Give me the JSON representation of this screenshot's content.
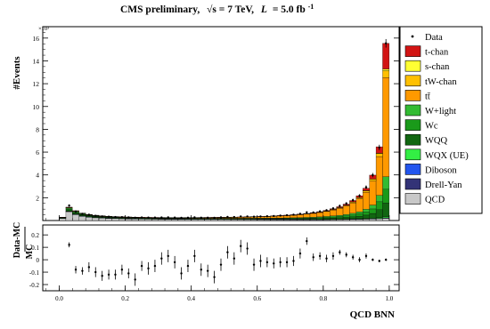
{
  "header": {
    "title_prefix": "CMS preliminary,",
    "sqrt_s": "√s = 7 TeV,",
    "lumi_symbol": "L",
    "lumi_value": "= 5.0 fb",
    "lumi_exponent": "-1"
  },
  "chart_data": [
    {
      "type": "bar",
      "subtype": "stacked-histogram",
      "title": "CMS preliminary, √s = 7 TeV, L = 5.0 fb-1",
      "ylabel": "#Events",
      "y_multiplier_label": "×10³",
      "xlim": [
        -0.05,
        1.03
      ],
      "ylim": [
        0,
        17000
      ],
      "y_ticks": [
        2000,
        4000,
        6000,
        8000,
        10000,
        12000,
        14000,
        16000
      ],
      "y_tick_labels": [
        "2",
        "4",
        "6",
        "8",
        "10",
        "12",
        "14",
        "16"
      ],
      "legend_position": "right, outside",
      "bin_width": 0.02,
      "bin_centers": [
        0.01,
        0.03,
        0.05,
        0.07,
        0.09,
        0.11,
        0.13,
        0.15,
        0.17,
        0.19,
        0.21,
        0.23,
        0.25,
        0.27,
        0.29,
        0.31,
        0.33,
        0.35,
        0.37,
        0.39,
        0.41,
        0.43,
        0.45,
        0.47,
        0.49,
        0.51,
        0.53,
        0.55,
        0.57,
        0.59,
        0.61,
        0.63,
        0.65,
        0.67,
        0.69,
        0.71,
        0.73,
        0.75,
        0.77,
        0.79,
        0.81,
        0.83,
        0.85,
        0.87,
        0.89,
        0.91,
        0.93,
        0.95,
        0.97,
        0.99
      ],
      "legend": [
        {
          "name": "Data",
          "color": "#000000",
          "marker": "point"
        },
        {
          "name": "t-chan",
          "color": "#d21414"
        },
        {
          "name": "s-chan",
          "color": "#ffff33"
        },
        {
          "name": "tW-chan",
          "color": "#ffc000"
        },
        {
          "name": "tt̄",
          "color": "#ff9900"
        },
        {
          "name": "W+light",
          "color": "#33bb33"
        },
        {
          "name": "Wc",
          "color": "#1a9a1a"
        },
        {
          "name": "WQQ",
          "color": "#116611"
        },
        {
          "name": "WQX (UE)",
          "color": "#33ee44"
        },
        {
          "name": "Diboson",
          "color": "#2255ee"
        },
        {
          "name": "Drell-Yan",
          "color": "#333377"
        },
        {
          "name": "QCD",
          "color": "#c8c8c8"
        }
      ],
      "series": [
        {
          "name": "QCD",
          "values": [
            180,
            780,
            520,
            380,
            300,
            250,
            220,
            200,
            180,
            170,
            160,
            150,
            140,
            135,
            130,
            125,
            120,
            118,
            115,
            112,
            110,
            108,
            106,
            104,
            102,
            100,
            98,
            96,
            94,
            92,
            90,
            88,
            86,
            84,
            82,
            80,
            80,
            80,
            80,
            80,
            85,
            90,
            95,
            100,
            110,
            120,
            130,
            140,
            160,
            190
          ]
        },
        {
          "name": "Drell-Yan",
          "values": [
            10,
            20,
            15,
            12,
            10,
            10,
            9,
            9,
            8,
            8,
            8,
            8,
            8,
            8,
            8,
            8,
            8,
            8,
            8,
            8,
            8,
            8,
            8,
            8,
            8,
            8,
            8,
            8,
            8,
            8,
            8,
            8,
            8,
            8,
            8,
            8,
            8,
            8,
            8,
            8,
            8,
            8,
            8,
            8,
            8,
            8,
            10,
            12,
            16,
            30
          ]
        },
        {
          "name": "Diboson",
          "values": [
            5,
            10,
            8,
            6,
            5,
            5,
            5,
            5,
            5,
            5,
            5,
            5,
            5,
            5,
            5,
            5,
            5,
            5,
            5,
            5,
            5,
            5,
            5,
            5,
            5,
            5,
            5,
            5,
            5,
            5,
            5,
            5,
            5,
            5,
            5,
            5,
            5,
            5,
            5,
            5,
            5,
            5,
            5,
            5,
            5,
            5,
            6,
            8,
            12,
            20
          ]
        },
        {
          "name": "WQX (UE)",
          "values": [
            10,
            30,
            25,
            20,
            18,
            16,
            14,
            12,
            11,
            10,
            10,
            10,
            10,
            10,
            10,
            10,
            10,
            10,
            10,
            10,
            10,
            10,
            10,
            10,
            10,
            10,
            10,
            10,
            10,
            10,
            10,
            10,
            10,
            10,
            10,
            10,
            10,
            10,
            10,
            10,
            12,
            14,
            16,
            18,
            20,
            24,
            30,
            40,
            60,
            100
          ]
        },
        {
          "name": "WQQ",
          "values": [
            40,
            130,
            110,
            90,
            80,
            70,
            62,
            56,
            52,
            48,
            46,
            44,
            42,
            40,
            39,
            38,
            37,
            36,
            35,
            34,
            34,
            34,
            34,
            34,
            34,
            34,
            34,
            34,
            34,
            34,
            34,
            36,
            38,
            40,
            44,
            48,
            52,
            58,
            66,
            76,
            88,
            102,
            120,
            145,
            180,
            225,
            300,
            420,
            700,
            1200
          ]
        },
        {
          "name": "Wc",
          "values": [
            15,
            60,
            50,
            40,
            34,
            30,
            27,
            24,
            22,
            20,
            19,
            18,
            17,
            16,
            16,
            16,
            16,
            16,
            16,
            16,
            16,
            16,
            17,
            18,
            19,
            20,
            21,
            22,
            24,
            26,
            28,
            30,
            33,
            36,
            40,
            45,
            50,
            56,
            62,
            70,
            80,
            95,
            110,
            130,
            160,
            200,
            270,
            400,
            700,
            1200
          ]
        },
        {
          "name": "W+light",
          "values": [
            20,
            80,
            70,
            55,
            46,
            40,
            36,
            32,
            29,
            27,
            25,
            24,
            23,
            22,
            21,
            20,
            20,
            20,
            20,
            20,
            20,
            20,
            21,
            22,
            23,
            24,
            25,
            26,
            28,
            30,
            32,
            34,
            37,
            40,
            44,
            48,
            52,
            58,
            64,
            72,
            80,
            92,
            106,
            124,
            150,
            185,
            240,
            340,
            560,
            1100
          ]
        },
        {
          "name": "tt̄",
          "values": [
            10,
            50,
            50,
            40,
            36,
            34,
            32,
            30,
            30,
            30,
            30,
            30,
            30,
            32,
            34,
            36,
            38,
            40,
            44,
            48,
            52,
            56,
            60,
            66,
            72,
            80,
            88,
            96,
            106,
            118,
            130,
            145,
            160,
            180,
            200,
            225,
            255,
            290,
            330,
            380,
            440,
            520,
            620,
            750,
            920,
            1150,
            1500,
            2100,
            3400,
            8700
          ]
        },
        {
          "name": "tW-chan",
          "values": [
            2,
            5,
            5,
            4,
            4,
            4,
            4,
            4,
            4,
            4,
            4,
            4,
            4,
            4,
            4,
            5,
            5,
            5,
            5,
            6,
            6,
            6,
            7,
            7,
            8,
            8,
            9,
            10,
            11,
            12,
            13,
            14,
            16,
            18,
            20,
            22,
            25,
            28,
            32,
            36,
            42,
            48,
            56,
            66,
            80,
            100,
            130,
            180,
            280,
            600
          ]
        },
        {
          "name": "s-chan",
          "values": [
            0,
            0,
            0,
            0,
            0,
            0,
            0,
            0,
            0,
            0,
            0,
            0,
            0,
            0,
            0,
            0,
            0,
            0,
            0,
            0,
            0,
            0,
            0,
            0,
            0,
            0,
            0,
            0,
            0,
            0,
            0,
            0,
            1,
            1,
            1,
            1,
            1,
            2,
            2,
            2,
            2,
            3,
            3,
            4,
            5,
            6,
            8,
            12,
            20,
            150
          ]
        },
        {
          "name": "t-chan",
          "values": [
            2,
            6,
            6,
            5,
            5,
            5,
            5,
            5,
            5,
            5,
            5,
            5,
            5,
            5,
            5,
            5,
            5,
            5,
            5,
            6,
            6,
            6,
            6,
            7,
            7,
            8,
            8,
            9,
            10,
            11,
            12,
            13,
            15,
            17,
            19,
            22,
            25,
            29,
            34,
            40,
            48,
            58,
            72,
            90,
            115,
            150,
            210,
            330,
            560,
            2250
          ]
        }
      ]
    },
    {
      "type": "scatter",
      "subtype": "ratio-panel",
      "ylabel_numerator": "Data-MC",
      "ylabel_denominator": "MC",
      "xlabel": "QCD BNN",
      "xlim": [
        -0.05,
        1.03
      ],
      "ylim": [
        -0.25,
        0.28
      ],
      "x_ticks": [
        0.0,
        0.2,
        0.4,
        0.6,
        0.8,
        1.0
      ],
      "x_tick_labels": [
        "0.0",
        "0.2",
        "0.4",
        "0.6",
        "0.8",
        "1.0"
      ],
      "y_ticks": [
        -0.2,
        -0.1,
        0.0,
        0.1,
        0.2
      ],
      "y_tick_labels": [
        "-0.2",
        "-0.1",
        "0",
        "0.1",
        "0.2"
      ],
      "x": [
        0.03,
        0.05,
        0.07,
        0.09,
        0.11,
        0.13,
        0.15,
        0.17,
        0.19,
        0.21,
        0.23,
        0.25,
        0.27,
        0.29,
        0.31,
        0.33,
        0.35,
        0.37,
        0.39,
        0.41,
        0.43,
        0.45,
        0.47,
        0.49,
        0.51,
        0.53,
        0.55,
        0.57,
        0.59,
        0.61,
        0.63,
        0.65,
        0.67,
        0.69,
        0.71,
        0.73,
        0.75,
        0.77,
        0.79,
        0.81,
        0.83,
        0.85,
        0.87,
        0.89,
        0.91,
        0.93,
        0.95,
        0.97,
        0.99
      ],
      "y": [
        0.12,
        -0.08,
        -0.09,
        -0.06,
        -0.1,
        -0.13,
        -0.12,
        -0.12,
        -0.08,
        -0.11,
        -0.16,
        -0.05,
        -0.07,
        -0.05,
        0.01,
        0.03,
        -0.02,
        -0.11,
        -0.05,
        0.03,
        -0.08,
        -0.09,
        -0.14,
        -0.04,
        0.06,
        0.01,
        0.11,
        0.09,
        -0.04,
        -0.01,
        -0.02,
        -0.03,
        -0.02,
        -0.02,
        -0.01,
        0.05,
        0.15,
        0.02,
        0.03,
        0.01,
        0.03,
        0.06,
        0.04,
        0.02,
        0.0,
        0.03,
        0.0,
        -0.01,
        0.0
      ],
      "yerr": [
        0.02,
        0.03,
        0.03,
        0.04,
        0.04,
        0.04,
        0.04,
        0.04,
        0.04,
        0.04,
        0.05,
        0.04,
        0.05,
        0.05,
        0.05,
        0.05,
        0.05,
        0.05,
        0.05,
        0.05,
        0.05,
        0.05,
        0.05,
        0.05,
        0.05,
        0.05,
        0.05,
        0.05,
        0.05,
        0.05,
        0.04,
        0.04,
        0.04,
        0.04,
        0.04,
        0.04,
        0.03,
        0.03,
        0.03,
        0.03,
        0.03,
        0.02,
        0.02,
        0.02,
        0.02,
        0.02,
        0.01,
        0.01,
        0.01
      ]
    }
  ]
}
